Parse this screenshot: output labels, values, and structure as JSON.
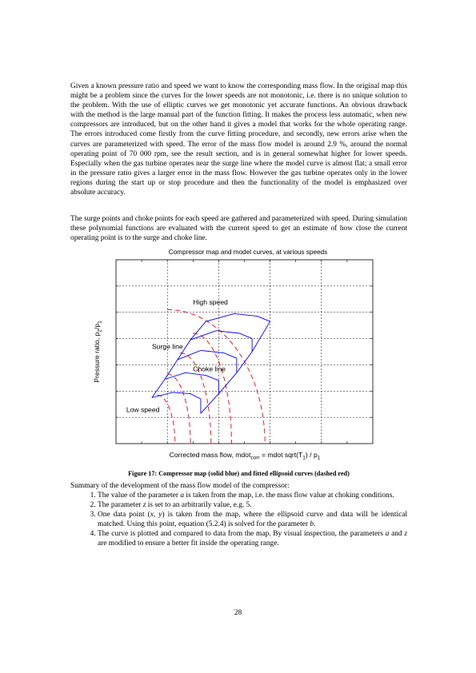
{
  "body": {
    "paragraph_1": "Given a known pressure ratio and speed we want to know the corresponding mass flow. In the original map this might be a problem since the curves for the lower speeds are not monotonic, i.e. there is no unique solution to the problem. With the use of elliptic curves we get monotonic yet accurate functions. An obvious drawback with the method is the large manual part of the function fitting. It makes the process less automatic, when new compressors are introduced, but on the other hand it gives a model that works for the whole operating range. The errors introduced come firstly from the curve fitting procedure, and secondly, new errors arise when the curves are parameterized with speed. The error of the mass flow model is around 2.9 %, around the normal operating point of 70 000 rpm, see the result section, and is in general somewhat higher for lower speeds. Especially when the gas turbine operates near the surge line where the model curve is almost flat; a small error in the pressure ratio gives a larger error in the mass flow. However the gas turbine operates only in the lower regions during the start up or stop procedure and then the functionality of the model is emphasized over absolute accuracy.",
    "paragraph_2": "The surge points and choke points for each speed are gathered and parameterized with speed. During simulation these polynomial functions are evaluated with the current speed to get an estimate of how close the current operating point is to the surge and choke line.",
    "summary_intro": "Summary of the development of the mass flow model of the compressor:",
    "steps": [
      {
        "pre": "The value of the parameter ",
        "v1": "a",
        "post": " is taken from the map, i.e. the mass flow value at choking conditions."
      },
      {
        "pre": "The parameter ",
        "v1": "z",
        "post": " is set to an arbitrarily value, e.g. 5."
      },
      {
        "pre": "One data point (",
        "v1": "x",
        "mid": ", ",
        "v2": "y",
        "post": ") is taken from the map, where the ellipsoid curve and data will be identical matched. Using this point, equation (5.2.4) is solved for the parameter ",
        "v3": "b",
        "end": "."
      },
      {
        "pre": "The curve is plotted and compared to data from the map. By visual inspection, the parameters ",
        "v1": "a",
        "mid": " and ",
        "v2": "z",
        "post": " are modified to ensure a better fit inside the operating range."
      }
    ],
    "page_number": "28"
  },
  "figure": {
    "caption": "Figure 17: Compressor map (solid blue) and fitted ellipsoid curves (dashed red)"
  },
  "chart_data": {
    "type": "line",
    "title": "Compressor map and model curves, at various speeds",
    "xlabel": {
      "main": "Corrected mass flow, mdot",
      "sub1": "corr",
      "mid": " = mdot sqrt(T",
      "sub2": "1",
      "end": ") / p",
      "sub3": "1"
    },
    "ylabel": {
      "main": "Pressure ratio, p",
      "sub1": "2",
      "mid": "/p",
      "sub2": "1"
    },
    "xlim": [
      0,
      10
    ],
    "ylim": [
      0,
      7
    ],
    "grid": true,
    "annotations": [
      {
        "text": "High speed",
        "x": 3.0,
        "y": 5.3
      },
      {
        "text": "Surge line",
        "x": 1.4,
        "y": 3.6
      },
      {
        "text": "Choke line",
        "x": 3.0,
        "y": 2.75
      },
      {
        "text": "Low speed",
        "x": 0.4,
        "y": 1.2
      }
    ],
    "colors": {
      "map": "#0000ff",
      "model": "#ff0000"
    },
    "speed_lines": [
      {
        "map": [
          [
            1.4,
            1.75
          ],
          [
            2.2,
            1.95
          ],
          [
            2.9,
            1.9
          ],
          [
            3.3,
            1.7
          ]
        ],
        "choke_x": 3.3,
        "model_x0": 1.6,
        "model_y0": 1.85,
        "model_a": 2.3
      },
      {
        "map": [
          [
            1.9,
            2.45
          ],
          [
            2.7,
            2.7
          ],
          [
            3.5,
            2.6
          ],
          [
            4.0,
            2.4
          ]
        ],
        "choke_x": 4.0,
        "model_x0": 2.0,
        "model_y0": 2.65,
        "model_a": 2.9
      },
      {
        "map": [
          [
            2.4,
            3.2
          ],
          [
            3.3,
            3.55
          ],
          [
            4.2,
            3.45
          ],
          [
            4.7,
            3.25
          ]
        ],
        "choke_x": 4.7,
        "model_x0": 2.5,
        "model_y0": 3.45,
        "model_a": 3.7
      },
      {
        "map": [
          [
            2.9,
            3.95
          ],
          [
            3.9,
            4.3
          ],
          [
            4.8,
            4.2
          ],
          [
            5.3,
            4.0
          ]
        ],
        "choke_x": 5.3,
        "model_x0": 3.0,
        "model_y0": 4.2,
        "model_a": 4.5
      },
      {
        "map": [
          [
            3.5,
            4.65
          ],
          [
            4.6,
            4.95
          ],
          [
            5.5,
            4.85
          ],
          [
            6.0,
            4.65
          ]
        ],
        "choke_x": 6.0,
        "model_x0": 2.0,
        "model_y0": 5.1,
        "model_a": 5.8
      }
    ],
    "surge_line": [
      [
        1.4,
        1.75
      ],
      [
        1.9,
        2.45
      ],
      [
        2.4,
        3.2
      ],
      [
        2.9,
        3.95
      ],
      [
        3.5,
        4.65
      ]
    ],
    "choke_line": [
      [
        3.3,
        1.15
      ],
      [
        4.0,
        1.9
      ],
      [
        4.7,
        2.7
      ],
      [
        5.3,
        3.5
      ],
      [
        6.0,
        4.65
      ]
    ]
  }
}
